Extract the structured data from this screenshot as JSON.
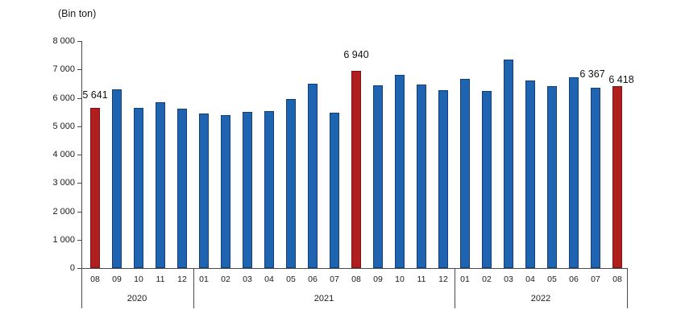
{
  "unit_label": "(Bin ton)",
  "colors": {
    "bar_blue": "#1E64B0",
    "bar_blue_border": "#123E79",
    "bar_red": "#B01E1E",
    "bar_red_border": "#7A1414",
    "axis": "#4a4a4a",
    "text": "#1a1a1a"
  },
  "chart_data": {
    "type": "bar",
    "title": "",
    "unit": "(Bin ton)",
    "ylabel": "(Bin ton)",
    "xlabel": "",
    "ylim": [
      0,
      8000
    ],
    "ytick_interval": 1000,
    "ytick_labels": [
      "0",
      "1 000",
      "2 000",
      "3 000",
      "4 000",
      "5 000",
      "6 000",
      "7 000",
      "8 000"
    ],
    "grid": false,
    "legend": false,
    "highlight_note": "August bars highlighted in red",
    "groups": [
      {
        "year": "2020",
        "months": [
          "08",
          "09",
          "10",
          "11",
          "12"
        ]
      },
      {
        "year": "2021",
        "months": [
          "01",
          "02",
          "03",
          "04",
          "05",
          "06",
          "07",
          "08",
          "09",
          "10",
          "11",
          "12"
        ]
      },
      {
        "year": "2022",
        "months": [
          "01",
          "02",
          "03",
          "04",
          "05",
          "06",
          "07",
          "08"
        ]
      }
    ],
    "bars": [
      {
        "year": "2020",
        "month": "08",
        "value": 5641,
        "color": "red",
        "label": "5 641"
      },
      {
        "year": "2020",
        "month": "09",
        "value": 6300,
        "color": "blue",
        "label": null
      },
      {
        "year": "2020",
        "month": "10",
        "value": 5660,
        "color": "blue",
        "label": null
      },
      {
        "year": "2020",
        "month": "11",
        "value": 5840,
        "color": "blue",
        "label": null
      },
      {
        "year": "2020",
        "month": "12",
        "value": 5610,
        "color": "blue",
        "label": null
      },
      {
        "year": "2021",
        "month": "01",
        "value": 5450,
        "color": "blue",
        "label": null
      },
      {
        "year": "2021",
        "month": "02",
        "value": 5380,
        "color": "blue",
        "label": null
      },
      {
        "year": "2021",
        "month": "03",
        "value": 5500,
        "color": "blue",
        "label": null
      },
      {
        "year": "2021",
        "month": "04",
        "value": 5540,
        "color": "blue",
        "label": null
      },
      {
        "year": "2021",
        "month": "05",
        "value": 5950,
        "color": "blue",
        "label": null
      },
      {
        "year": "2021",
        "month": "06",
        "value": 6500,
        "color": "blue",
        "label": null
      },
      {
        "year": "2021",
        "month": "07",
        "value": 5470,
        "color": "blue",
        "label": null
      },
      {
        "year": "2021",
        "month": "08",
        "value": 6940,
        "color": "red",
        "label": "6 940"
      },
      {
        "year": "2021",
        "month": "09",
        "value": 6430,
        "color": "blue",
        "label": null
      },
      {
        "year": "2021",
        "month": "10",
        "value": 6810,
        "color": "blue",
        "label": null
      },
      {
        "year": "2021",
        "month": "11",
        "value": 6460,
        "color": "blue",
        "label": null
      },
      {
        "year": "2021",
        "month": "12",
        "value": 6280,
        "color": "blue",
        "label": null
      },
      {
        "year": "2022",
        "month": "01",
        "value": 6660,
        "color": "blue",
        "label": null
      },
      {
        "year": "2022",
        "month": "02",
        "value": 6230,
        "color": "blue",
        "label": null
      },
      {
        "year": "2022",
        "month": "03",
        "value": 7350,
        "color": "blue",
        "label": null
      },
      {
        "year": "2022",
        "month": "04",
        "value": 6620,
        "color": "blue",
        "label": null
      },
      {
        "year": "2022",
        "month": "05",
        "value": 6420,
        "color": "blue",
        "label": null
      },
      {
        "year": "2022",
        "month": "06",
        "value": 6720,
        "color": "blue",
        "label": null
      },
      {
        "year": "2022",
        "month": "07",
        "value": 6367,
        "color": "blue",
        "label": "6 367"
      },
      {
        "year": "2022",
        "month": "08",
        "value": 6418,
        "color": "red",
        "label": "6 418"
      }
    ]
  }
}
